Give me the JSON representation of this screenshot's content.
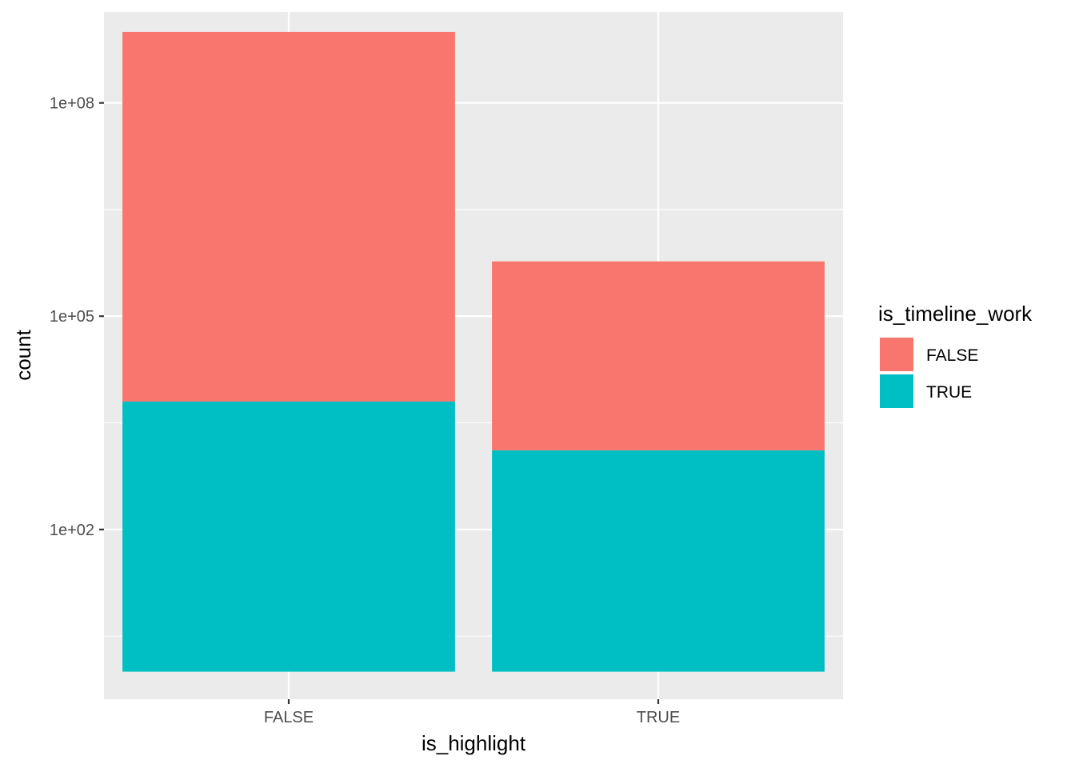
{
  "chart_data": {
    "type": "bar",
    "stacked": true,
    "y_scale": "log10",
    "categories": [
      "FALSE",
      "TRUE"
    ],
    "series": [
      {
        "name": "TRUE",
        "color": "#00BFC4",
        "values": [
          6300,
          1300
        ]
      },
      {
        "name": "FALSE",
        "color": "#F8766D",
        "values": [
          996000000,
          590000
        ]
      }
    ],
    "xlabel": "is_highlight",
    "ylabel": "count",
    "y_ticks": [
      100,
      100000,
      100000000
    ],
    "y_tick_labels": [
      "1e+02",
      "1e+05",
      "1e+08"
    ],
    "y_minor_ticks": [
      3.16,
      3162,
      3162278
    ],
    "ylim": [
      0.41,
      1900000000
    ],
    "bar_base": 1,
    "legend": {
      "title": "is_timeline_work",
      "placement": "right",
      "entries": [
        "FALSE",
        "TRUE"
      ]
    },
    "panel_background": "#EBEBEB",
    "grid": true
  }
}
